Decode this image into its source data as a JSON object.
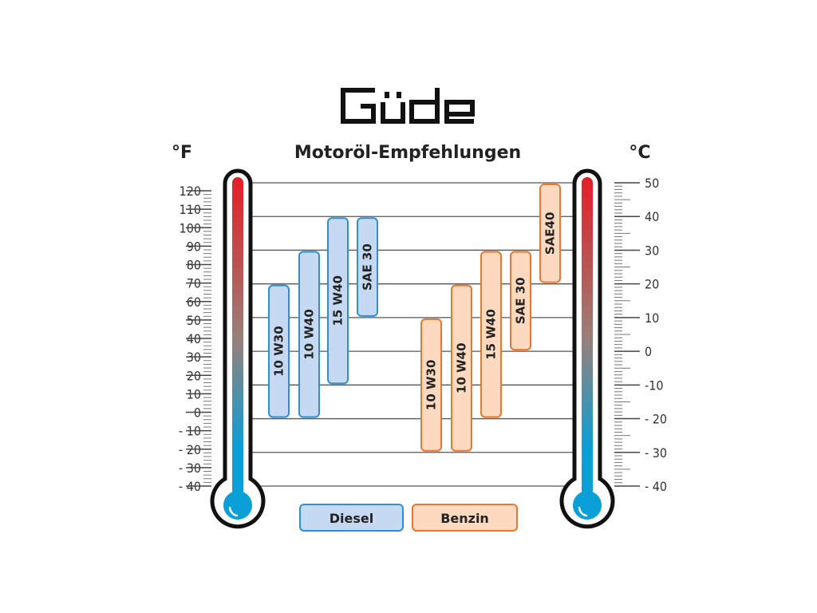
{
  "logo_text": "Güde",
  "chart_data": {
    "type": "bar",
    "subtype": "floating-range-vertical",
    "title": "Motoröl-Empfehlungen",
    "left_axis": {
      "unit": "°F",
      "ylim": [
        -40,
        120
      ],
      "ticks": [
        120,
        110,
        100,
        90,
        80,
        70,
        60,
        50,
        40,
        30,
        20,
        10,
        0,
        -10,
        -20,
        -30,
        -40
      ],
      "tick_labels": [
        "120",
        "110",
        "100",
        "90",
        "80",
        "70",
        "60",
        "50",
        "40",
        "30",
        "20",
        "10",
        "0",
        "- 10",
        "- 20",
        "- 30",
        "- 40"
      ]
    },
    "right_axis": {
      "unit": "°C",
      "ylim": [
        -40,
        50
      ],
      "ticks": [
        50,
        40,
        30,
        20,
        10,
        0,
        -10,
        -20,
        -30,
        -40
      ],
      "tick_labels": [
        "50",
        "40",
        "30",
        "20",
        "10",
        "0",
        "-10",
        "- 20",
        "- 30",
        "- 40"
      ]
    },
    "grid": true,
    "legend": {
      "placement": "bottom",
      "entries": [
        "Diesel",
        "Benzin"
      ]
    },
    "series": [
      {
        "name": "Diesel",
        "fill": "#c5daf2",
        "stroke": "#2f8fd0",
        "bars": [
          {
            "label": "10 W30",
            "min_c": -20,
            "max_c": 20
          },
          {
            "label": "10 W40",
            "min_c": -20,
            "max_c": 30
          },
          {
            "label": "15 W40",
            "min_c": -10,
            "max_c": 40
          },
          {
            "label": "SAE 30",
            "min_c": 10,
            "max_c": 40
          }
        ]
      },
      {
        "name": "Benzin",
        "fill": "#fcd9bf",
        "stroke": "#e8782e",
        "bars": [
          {
            "label": "10 W30",
            "min_c": -30,
            "max_c": 10
          },
          {
            "label": "10 W40",
            "min_c": -30,
            "max_c": 20
          },
          {
            "label": "15 W40",
            "min_c": -20,
            "max_c": 30
          },
          {
            "label": "SAE 30",
            "min_c": 0,
            "max_c": 30
          },
          {
            "label": "SAE40",
            "min_c": 20,
            "max_c": 50
          }
        ]
      }
    ],
    "thermometer_colors": {
      "hot": "#e41e26",
      "mid": "#9a7f78",
      "cold": "#0a9fd6"
    }
  }
}
